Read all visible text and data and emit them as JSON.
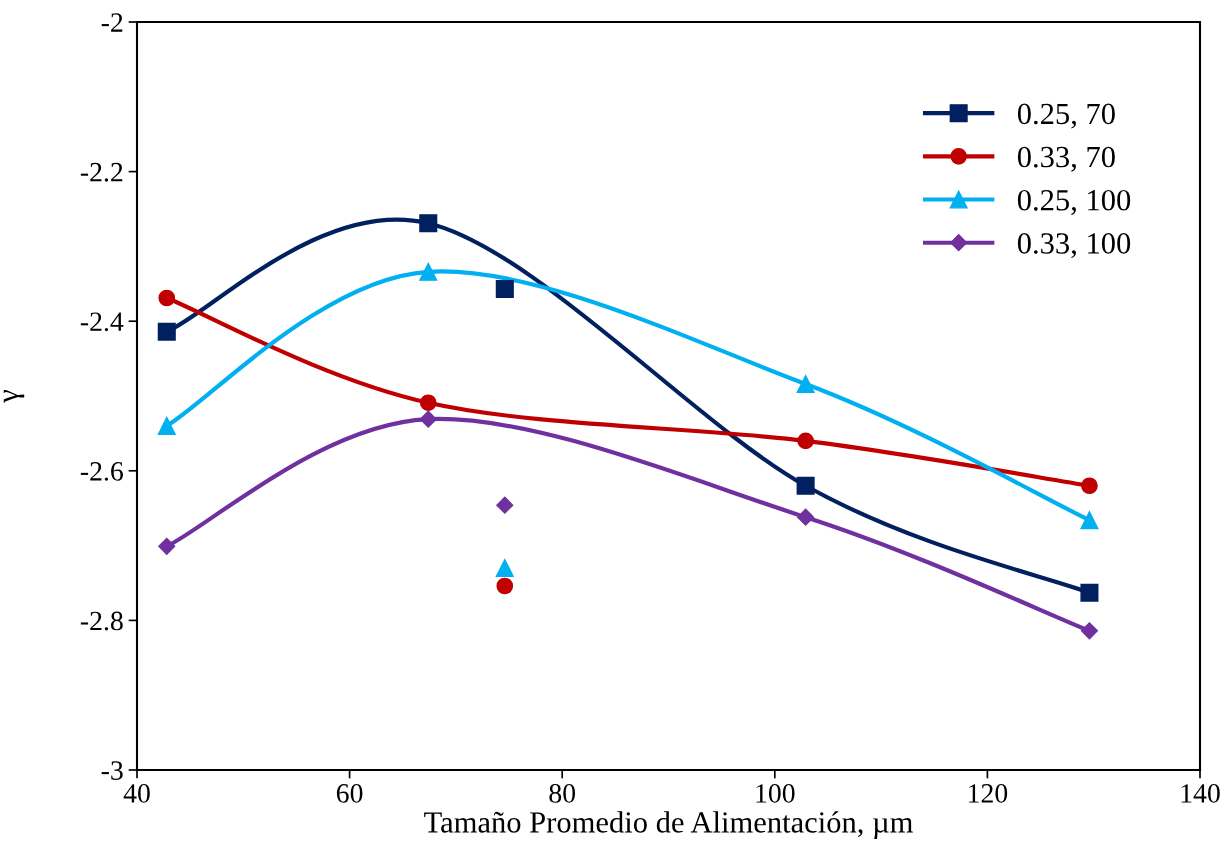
{
  "chart_data": {
    "type": "line",
    "xlabel": "Tamaño Promedio de Alimentación, µm",
    "ylabel": "γ",
    "xlim": [
      40,
      140
    ],
    "xticks": [
      40,
      60,
      80,
      100,
      120,
      140
    ],
    "ylim": [
      -3,
      -2
    ],
    "yticks": [
      -3,
      -2.8,
      -2.6,
      -2.4,
      -2.2,
      -2
    ],
    "grid": false,
    "legend": "top right",
    "line_style": "solid",
    "series": [
      {
        "name": "0.25, 70",
        "color": "#002060",
        "marker": "square",
        "x": [
          42.8,
          67.4,
          102.9,
          129.6
        ],
        "values": [
          -2.414,
          -2.269,
          -2.62,
          -2.763
        ]
      },
      {
        "name": "0.33, 70",
        "color": "#c00000",
        "marker": "circle",
        "x": [
          42.8,
          67.4,
          102.9,
          129.6
        ],
        "values": [
          -2.369,
          -2.509,
          -2.56,
          -2.62
        ]
      },
      {
        "name": "0.25, 100",
        "color": "#00b0f0",
        "marker": "triangle",
        "x": [
          42.8,
          67.4,
          102.9,
          129.6
        ],
        "values": [
          -2.54,
          -2.334,
          -2.484,
          -2.666
        ]
      },
      {
        "name": "0.33, 100",
        "color": "#7030a0",
        "marker": "diamond",
        "x": [
          42.8,
          67.4,
          102.9,
          129.6
        ],
        "values": [
          -2.701,
          -2.531,
          -2.662,
          -2.814
        ]
      },
      {
        "type": "scatter",
        "color": "#002060",
        "marker": "square",
        "x": [
          74.6
        ],
        "values": [
          -2.357
        ]
      },
      {
        "type": "scatter",
        "color": "#c00000",
        "marker": "circle",
        "x": [
          74.6
        ],
        "values": [
          -2.754
        ]
      },
      {
        "type": "scatter",
        "color": "#00b0f0",
        "marker": "triangle",
        "x": [
          74.6
        ],
        "values": [
          -2.73
        ]
      },
      {
        "type": "scatter",
        "color": "#7030a0",
        "marker": "diamond",
        "x": [
          74.6
        ],
        "values": [
          -2.646
        ]
      }
    ]
  }
}
